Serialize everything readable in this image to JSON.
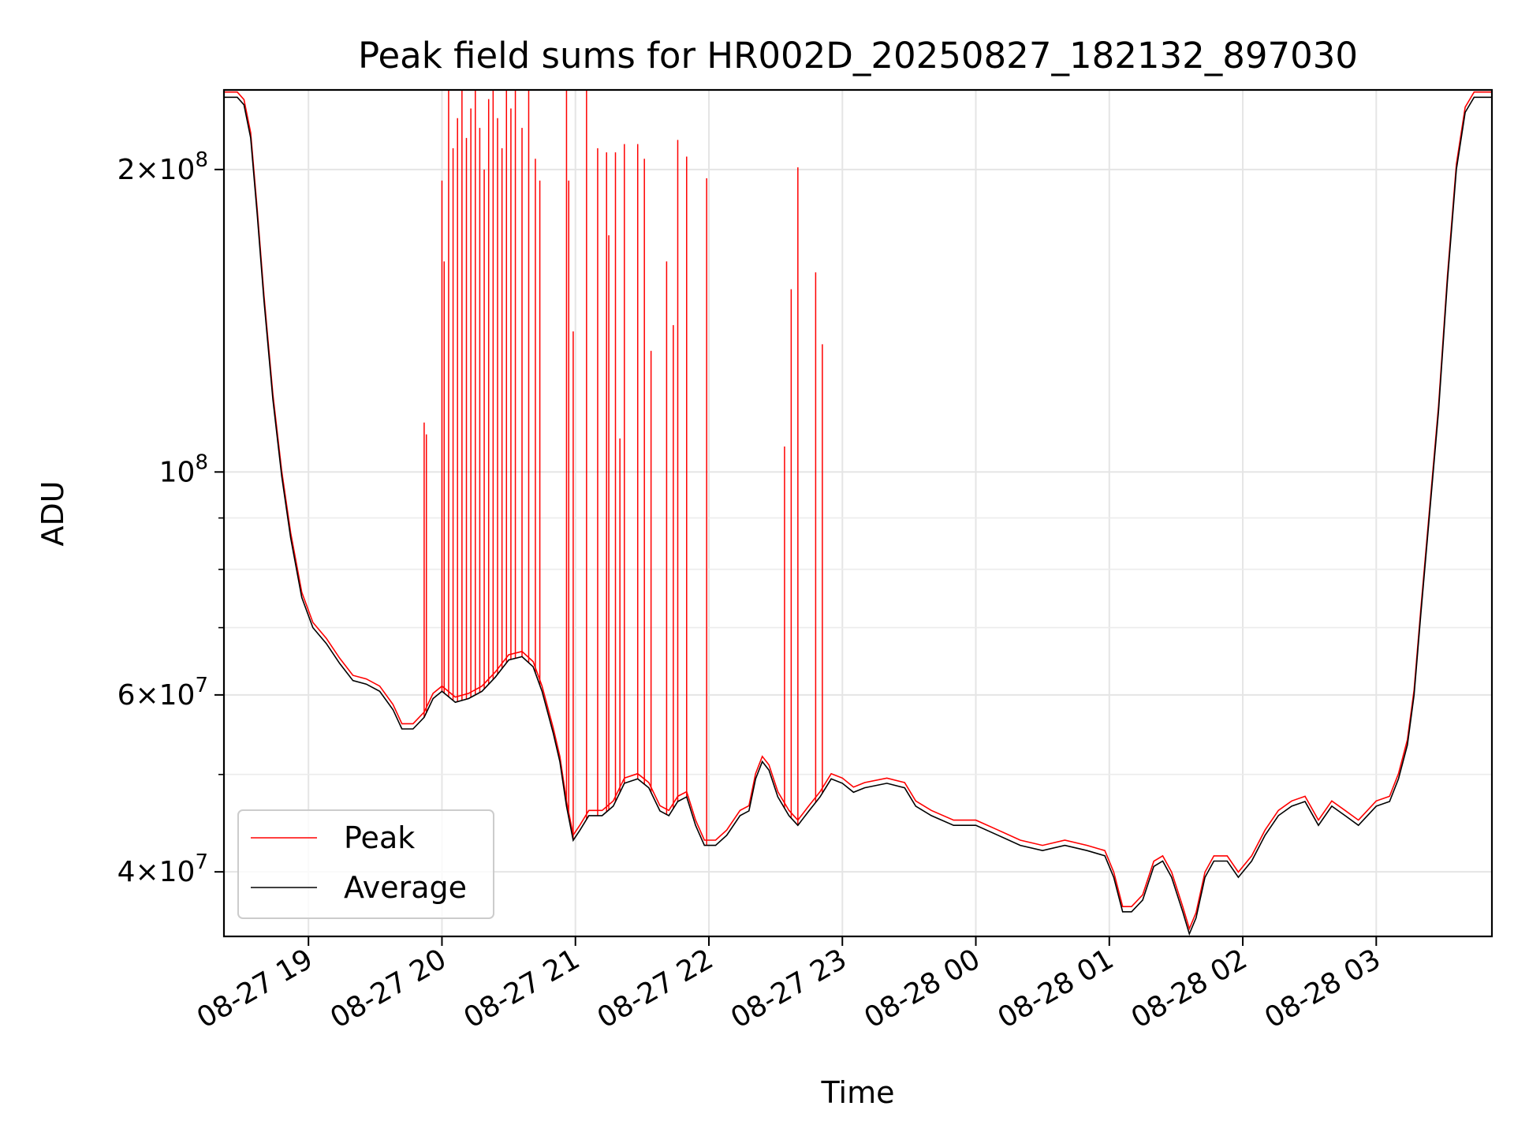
{
  "chart_data": {
    "type": "line",
    "title": "Peak field sums for HR002D_20250827_182132_897030",
    "xlabel": "Time",
    "ylabel": "ADU",
    "x_scale": "time",
    "y_scale": "log",
    "xlim": [
      "2025-08-27T18:22",
      "2025-08-28T03:52"
    ],
    "ylim": [
      34500000,
      240000000
    ],
    "grid": true,
    "legend_position": "lower-left",
    "x_ticks": [
      {
        "value": "2025-08-27T19:00",
        "label": "08-27 19"
      },
      {
        "value": "2025-08-27T20:00",
        "label": "08-27 20"
      },
      {
        "value": "2025-08-27T21:00",
        "label": "08-27 21"
      },
      {
        "value": "2025-08-27T22:00",
        "label": "08-27 22"
      },
      {
        "value": "2025-08-27T23:00",
        "label": "08-27 23"
      },
      {
        "value": "2025-08-28T00:00",
        "label": "08-28 00"
      },
      {
        "value": "2025-08-28T01:00",
        "label": "08-28 01"
      },
      {
        "value": "2025-08-28T02:00",
        "label": "08-28 02"
      },
      {
        "value": "2025-08-28T03:00",
        "label": "08-28 03"
      }
    ],
    "y_ticks": [
      {
        "value": 40000000,
        "mantissa": "4",
        "exponent": "7"
      },
      {
        "value": 60000000,
        "mantissa": "6",
        "exponent": "7"
      },
      {
        "value": 100000000,
        "mantissa": "",
        "exponent": "8"
      },
      {
        "value": 200000000,
        "mantissa": "2",
        "exponent": "8"
      }
    ],
    "y_minor_ticks": [
      50000000,
      70000000,
      80000000,
      90000000
    ],
    "series": [
      {
        "name": "Average",
        "color": "#000000",
        "points": [
          [
            "2025-08-27T18:22",
            236000000
          ],
          [
            "2025-08-27T18:28",
            236000000
          ],
          [
            "2025-08-27T18:31",
            232000000
          ],
          [
            "2025-08-27T18:34",
            215000000
          ],
          [
            "2025-08-27T18:37",
            180000000
          ],
          [
            "2025-08-27T18:40",
            148000000
          ],
          [
            "2025-08-27T18:44",
            118000000
          ],
          [
            "2025-08-27T18:48",
            99000000
          ],
          [
            "2025-08-27T18:52",
            86000000
          ],
          [
            "2025-08-27T18:57",
            75000000
          ],
          [
            "2025-08-27T19:02",
            70000000
          ],
          [
            "2025-08-27T19:08",
            67500000
          ],
          [
            "2025-08-27T19:14",
            64500000
          ],
          [
            "2025-08-27T19:20",
            62000000
          ],
          [
            "2025-08-27T19:26",
            61500000
          ],
          [
            "2025-08-27T19:32",
            60500000
          ],
          [
            "2025-08-27T19:38",
            58000000
          ],
          [
            "2025-08-27T19:42",
            55500000
          ],
          [
            "2025-08-27T19:47",
            55500000
          ],
          [
            "2025-08-27T19:52",
            57000000
          ],
          [
            "2025-08-27T19:56",
            59500000
          ],
          [
            "2025-08-27T20:00",
            60500000
          ],
          [
            "2025-08-27T20:06",
            59000000
          ],
          [
            "2025-08-27T20:12",
            59500000
          ],
          [
            "2025-08-27T20:18",
            60500000
          ],
          [
            "2025-08-27T20:24",
            62500000
          ],
          [
            "2025-08-27T20:30",
            65000000
          ],
          [
            "2025-08-27T20:36",
            65500000
          ],
          [
            "2025-08-27T20:41",
            64000000
          ],
          [
            "2025-08-27T20:45",
            60500000
          ],
          [
            "2025-08-27T20:50",
            55000000
          ],
          [
            "2025-08-27T20:53",
            51500000
          ],
          [
            "2025-08-27T20:56",
            46500000
          ],
          [
            "2025-08-27T20:59",
            43000000
          ],
          [
            "2025-08-27T21:02",
            44000000
          ],
          [
            "2025-08-27T21:06",
            45500000
          ],
          [
            "2025-08-27T21:12",
            45500000
          ],
          [
            "2025-08-27T21:17",
            46500000
          ],
          [
            "2025-08-27T21:22",
            49000000
          ],
          [
            "2025-08-27T21:28",
            49500000
          ],
          [
            "2025-08-27T21:33",
            48500000
          ],
          [
            "2025-08-27T21:38",
            46000000
          ],
          [
            "2025-08-27T21:42",
            45500000
          ],
          [
            "2025-08-27T21:46",
            47000000
          ],
          [
            "2025-08-27T21:50",
            47500000
          ],
          [
            "2025-08-27T21:54",
            44500000
          ],
          [
            "2025-08-27T21:58",
            42500000
          ],
          [
            "2025-08-27T22:03",
            42500000
          ],
          [
            "2025-08-27T22:08",
            43500000
          ],
          [
            "2025-08-27T22:14",
            45500000
          ],
          [
            "2025-08-27T22:18",
            46000000
          ],
          [
            "2025-08-27T22:21",
            49500000
          ],
          [
            "2025-08-27T22:24",
            51500000
          ],
          [
            "2025-08-27T22:27",
            50500000
          ],
          [
            "2025-08-27T22:31",
            47500000
          ],
          [
            "2025-08-27T22:36",
            45500000
          ],
          [
            "2025-08-27T22:40",
            44500000
          ],
          [
            "2025-08-27T22:45",
            46000000
          ],
          [
            "2025-08-27T22:50",
            47500000
          ],
          [
            "2025-08-27T22:55",
            49500000
          ],
          [
            "2025-08-27T23:00",
            49000000
          ],
          [
            "2025-08-27T23:05",
            48000000
          ],
          [
            "2025-08-27T23:10",
            48500000
          ],
          [
            "2025-08-27T23:20",
            49000000
          ],
          [
            "2025-08-27T23:28",
            48500000
          ],
          [
            "2025-08-27T23:33",
            46500000
          ],
          [
            "2025-08-27T23:40",
            45500000
          ],
          [
            "2025-08-27T23:50",
            44500000
          ],
          [
            "2025-08-28T00:00",
            44500000
          ],
          [
            "2025-08-28T00:10",
            43500000
          ],
          [
            "2025-08-28T00:20",
            42500000
          ],
          [
            "2025-08-28T00:30",
            42000000
          ],
          [
            "2025-08-28T00:40",
            42500000
          ],
          [
            "2025-08-28T00:50",
            42000000
          ],
          [
            "2025-08-28T00:58",
            41500000
          ],
          [
            "2025-08-28T01:02",
            39500000
          ],
          [
            "2025-08-28T01:06",
            36500000
          ],
          [
            "2025-08-28T01:10",
            36500000
          ],
          [
            "2025-08-28T01:15",
            37500000
          ],
          [
            "2025-08-28T01:20",
            40500000
          ],
          [
            "2025-08-28T01:24",
            41000000
          ],
          [
            "2025-08-28T01:28",
            39500000
          ],
          [
            "2025-08-28T01:33",
            36500000
          ],
          [
            "2025-08-28T01:36",
            34700000
          ],
          [
            "2025-08-28T01:39",
            36000000
          ],
          [
            "2025-08-28T01:43",
            39500000
          ],
          [
            "2025-08-28T01:47",
            41000000
          ],
          [
            "2025-08-28T01:53",
            41000000
          ],
          [
            "2025-08-28T01:58",
            39500000
          ],
          [
            "2025-08-28T02:04",
            41000000
          ],
          [
            "2025-08-28T02:10",
            43500000
          ],
          [
            "2025-08-28T02:16",
            45500000
          ],
          [
            "2025-08-28T02:22",
            46500000
          ],
          [
            "2025-08-28T02:28",
            47000000
          ],
          [
            "2025-08-28T02:34",
            44500000
          ],
          [
            "2025-08-28T02:40",
            46500000
          ],
          [
            "2025-08-28T02:46",
            45500000
          ],
          [
            "2025-08-28T02:52",
            44500000
          ],
          [
            "2025-08-28T03:00",
            46500000
          ],
          [
            "2025-08-28T03:06",
            47000000
          ],
          [
            "2025-08-28T03:10",
            49500000
          ],
          [
            "2025-08-28T03:14",
            53500000
          ],
          [
            "2025-08-28T03:17",
            60000000
          ],
          [
            "2025-08-28T03:20",
            72000000
          ],
          [
            "2025-08-28T03:24",
            91000000
          ],
          [
            "2025-08-28T03:28",
            115000000
          ],
          [
            "2025-08-28T03:32",
            155000000
          ],
          [
            "2025-08-28T03:36",
            200000000
          ],
          [
            "2025-08-28T03:40",
            228000000
          ],
          [
            "2025-08-28T03:44",
            236000000
          ],
          [
            "2025-08-28T03:52",
            236000000
          ]
        ]
      },
      {
        "name": "Peak",
        "color": "#ff0000",
        "spikes": [
          [
            "2025-08-27T19:52",
            112000000
          ],
          [
            "2025-08-27T19:53",
            109000000
          ],
          [
            "2025-08-27T20:00",
            195000000
          ],
          [
            "2025-08-27T20:01",
            162000000
          ],
          [
            "2025-08-27T20:03",
            240000000
          ],
          [
            "2025-08-27T20:05",
            210000000
          ],
          [
            "2025-08-27T20:07",
            225000000
          ],
          [
            "2025-08-27T20:09",
            240000000
          ],
          [
            "2025-08-27T20:11",
            215000000
          ],
          [
            "2025-08-27T20:13",
            230000000
          ],
          [
            "2025-08-27T20:15",
            240000000
          ],
          [
            "2025-08-27T20:17",
            220000000
          ],
          [
            "2025-08-27T20:19",
            200000000
          ],
          [
            "2025-08-27T20:21",
            235000000
          ],
          [
            "2025-08-27T20:23",
            240000000
          ],
          [
            "2025-08-27T20:25",
            225000000
          ],
          [
            "2025-08-27T20:27",
            210000000
          ],
          [
            "2025-08-27T20:29",
            240000000
          ],
          [
            "2025-08-27T20:31",
            230000000
          ],
          [
            "2025-08-27T20:33",
            240000000
          ],
          [
            "2025-08-27T20:36",
            220000000
          ],
          [
            "2025-08-27T20:39",
            240000000
          ],
          [
            "2025-08-27T20:42",
            205000000
          ],
          [
            "2025-08-27T20:44",
            195000000
          ],
          [
            "2025-08-27T20:56",
            240000000
          ],
          [
            "2025-08-27T20:57",
            195000000
          ],
          [
            "2025-08-27T20:59",
            138000000
          ],
          [
            "2025-08-27T21:05",
            240000000
          ],
          [
            "2025-08-27T21:10",
            210000000
          ],
          [
            "2025-08-27T21:14",
            208000000
          ],
          [
            "2025-08-27T21:15",
            172000000
          ],
          [
            "2025-08-27T21:18",
            208000000
          ],
          [
            "2025-08-27T21:20",
            108000000
          ],
          [
            "2025-08-27T21:22",
            212000000
          ],
          [
            "2025-08-27T21:28",
            212000000
          ],
          [
            "2025-08-27T21:31",
            205000000
          ],
          [
            "2025-08-27T21:34",
            132000000
          ],
          [
            "2025-08-27T21:41",
            162000000
          ],
          [
            "2025-08-27T21:44",
            140000000
          ],
          [
            "2025-08-27T21:46",
            214000000
          ],
          [
            "2025-08-27T21:50",
            206000000
          ],
          [
            "2025-08-27T21:59",
            196000000
          ],
          [
            "2025-08-27T22:34",
            106000000
          ],
          [
            "2025-08-27T22:37",
            152000000
          ],
          [
            "2025-08-27T22:40",
            201000000
          ],
          [
            "2025-08-27T22:48",
            158000000
          ],
          [
            "2025-08-27T22:51",
            134000000
          ]
        ]
      }
    ]
  }
}
